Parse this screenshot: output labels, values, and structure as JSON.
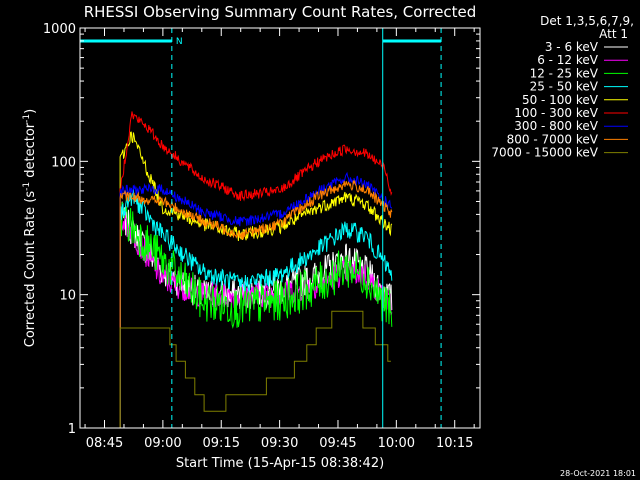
{
  "chart_data": {
    "type": "line",
    "title": "RHESSI Observing Summary Count Rates, Corrected",
    "xlabel": "Start Time (15-Apr-15 08:38:42)",
    "ylabel_main": "Corrected Count Rate (s",
    "ylabel_sup1": "-1",
    "ylabel_mid": " detector",
    "ylabel_sup2": "-1",
    "ylabel_end": ")",
    "y_scale": "log",
    "ylim": [
      1,
      1000
    ],
    "xlim_min": [
      518.7,
      621.5
    ],
    "x_ticks": [
      {
        "min": 525,
        "label": "08:45"
      },
      {
        "min": 540,
        "label": "09:00"
      },
      {
        "min": 555,
        "label": "09:15"
      },
      {
        "min": 570,
        "label": "09:30"
      },
      {
        "min": 585,
        "label": "09:45"
      },
      {
        "min": 600,
        "label": "10:00"
      },
      {
        "min": 615,
        "label": "10:15"
      }
    ],
    "y_ticks": [
      {
        "value": 1,
        "label": "1"
      },
      {
        "value": 10,
        "label": "10"
      },
      {
        "value": 100,
        "label": "100"
      },
      {
        "value": 1000,
        "label": "1000"
      }
    ],
    "legend_header": [
      "Det 1,3,5,6,7,9,",
      "Att 1"
    ],
    "series": [
      {
        "name": "3 - 6 keV",
        "color": "#ffffff",
        "points": [
          [
            529,
            40
          ],
          [
            540,
            15
          ],
          [
            550,
            10
          ],
          [
            560,
            10
          ],
          [
            570,
            11
          ],
          [
            580,
            14
          ],
          [
            587,
            19
          ],
          [
            592,
            15
          ],
          [
            599,
            9
          ]
        ]
      },
      {
        "name": "6 - 12 keV",
        "color": "#ff00ff",
        "points": [
          [
            529,
            40
          ],
          [
            540,
            13
          ],
          [
            550,
            10
          ],
          [
            560,
            10
          ],
          [
            570,
            10
          ],
          [
            580,
            12
          ],
          [
            587,
            15
          ],
          [
            592,
            14
          ],
          [
            599,
            8
          ]
        ]
      },
      {
        "name": "12 - 25 keV",
        "color": "#00ff00",
        "points": [
          [
            529,
            40
          ],
          [
            540,
            18
          ],
          [
            550,
            9
          ],
          [
            560,
            8
          ],
          [
            570,
            9
          ],
          [
            580,
            12
          ],
          [
            587,
            16
          ],
          [
            592,
            14
          ],
          [
            599,
            7
          ]
        ]
      },
      {
        "name": "25 - 50 keV",
        "color": "#00ffff",
        "points": [
          [
            529,
            40
          ],
          [
            532,
            55
          ],
          [
            540,
            28
          ],
          [
            550,
            15
          ],
          [
            560,
            12
          ],
          [
            570,
            14
          ],
          [
            580,
            22
          ],
          [
            587,
            31
          ],
          [
            592,
            28
          ],
          [
            599,
            14
          ]
        ]
      },
      {
        "name": "50 - 100 keV",
        "color": "#ffff00",
        "points": [
          [
            529,
            100
          ],
          [
            532,
            160
          ],
          [
            540,
            45
          ],
          [
            550,
            34
          ],
          [
            560,
            28
          ],
          [
            570,
            32
          ],
          [
            580,
            45
          ],
          [
            587,
            54
          ],
          [
            592,
            48
          ],
          [
            599,
            30
          ]
        ]
      },
      {
        "name": "100 - 300 keV",
        "color": "#ff0000",
        "points": [
          [
            529,
            60
          ],
          [
            532,
            225
          ],
          [
            536,
            180
          ],
          [
            540,
            130
          ],
          [
            550,
            75
          ],
          [
            560,
            55
          ],
          [
            570,
            60
          ],
          [
            580,
            100
          ],
          [
            587,
            125
          ],
          [
            592,
            115
          ],
          [
            597,
            90
          ],
          [
            599,
            55
          ]
        ]
      },
      {
        "name": "300 - 800 keV",
        "color": "#0000ff",
        "points": [
          [
            529,
            60
          ],
          [
            540,
            62
          ],
          [
            550,
            42
          ],
          [
            560,
            35
          ],
          [
            570,
            40
          ],
          [
            580,
            60
          ],
          [
            587,
            75
          ],
          [
            592,
            68
          ],
          [
            599,
            45
          ]
        ]
      },
      {
        "name": "800 - 7000 keV",
        "color": "#ff8000",
        "points": [
          [
            529,
            55
          ],
          [
            540,
            50
          ],
          [
            550,
            36
          ],
          [
            560,
            28
          ],
          [
            570,
            34
          ],
          [
            580,
            55
          ],
          [
            587,
            68
          ],
          [
            592,
            62
          ],
          [
            599,
            40
          ]
        ]
      },
      {
        "name": "7000 - 15000 keV",
        "color": "#808000",
        "points": [
          [
            529,
            5
          ],
          [
            532,
            6
          ],
          [
            540,
            5.5
          ],
          [
            545,
            3
          ],
          [
            550,
            1.5
          ],
          [
            555,
            1.5
          ],
          [
            560,
            1.8
          ],
          [
            565,
            2
          ],
          [
            570,
            2.2
          ],
          [
            575,
            3
          ],
          [
            580,
            5.5
          ],
          [
            587,
            8
          ],
          [
            592,
            6
          ],
          [
            599,
            3
          ]
        ]
      }
    ],
    "attenuator_in_intervals": [
      [
        518.7,
        542.3
      ],
      [
        596.5,
        611.5
      ]
    ],
    "night_markers_min": [
      518.7,
      596.5
    ],
    "day_markers_min": [
      542.3,
      611.5
    ],
    "attenuator_label": "N",
    "timestamp": "28-Oct-2021 18:01"
  }
}
